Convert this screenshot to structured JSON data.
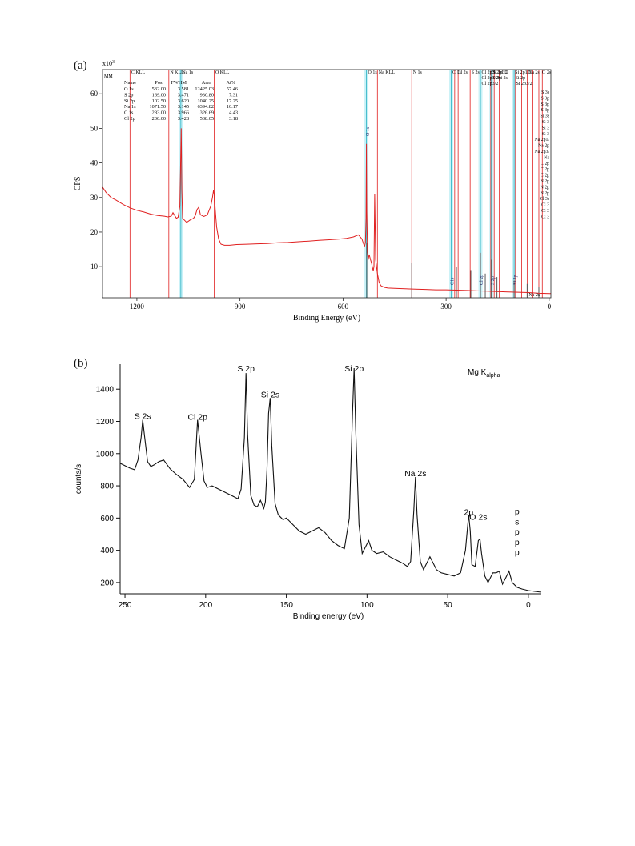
{
  "panel_a": {
    "label": "(a)",
    "ylabel": "CPS",
    "xlabel": "Binding Energy (eV)",
    "exponent_label": "x10",
    "exponent_sup": "3",
    "corner_tag": "MM",
    "table": {
      "headers": [
        "Name",
        "Pos.",
        "FWHM",
        "Area",
        "At%"
      ],
      "rows": [
        [
          "O 1s",
          "532.00",
          "3.581",
          "12425.03",
          "57.46"
        ],
        [
          "S 2p",
          "169.00",
          "3.471",
          "930.80",
          "7.31"
        ],
        [
          "Si 2p",
          "102.50",
          "3.620",
          "1040.25",
          "17.25"
        ],
        [
          "Na 1s",
          "1071.50",
          "3.145",
          "6394.82",
          "10.17"
        ],
        [
          "C 1s",
          "283.00",
          "3.966",
          "326.69",
          "4.43"
        ],
        [
          "Cl 2p",
          "200.00",
          "3.428",
          "538.05",
          "3.18"
        ]
      ]
    },
    "top_labels": [
      {
        "text": "C KLL",
        "x": 1220
      },
      {
        "text": "Na 1s",
        "x": 1072
      },
      {
        "text": "N KLL",
        "x": 1107
      },
      {
        "text": "O KLL",
        "x": 975
      },
      {
        "text": "O 1s",
        "x": 531
      },
      {
        "text": "Na KLL",
        "x": 500
      },
      {
        "text": "N 1s",
        "x": 400
      },
      {
        "text": "C 1s",
        "x": 285
      },
      {
        "text": "Cl 2s",
        "x": 270
      },
      {
        "text": "S 2s",
        "x": 230
      },
      {
        "text": "S 2p1/2",
        "x": 168
      },
      {
        "text": "Si 2p1/2",
        "x": 103
      },
      {
        "text": "Cl 2p3",
        "x": 200
      },
      {
        "text": "S 2p",
        "x": 168
      },
      {
        "text": "S 2p3/2",
        "x": 165
      },
      {
        "text": "Si 2p",
        "x": 102
      },
      {
        "text": "Na 2s",
        "x": 64
      },
      {
        "text": "Si 2p3/2",
        "x": 100
      },
      {
        "text": "Si 2s",
        "x": 152
      },
      {
        "text": "Cl 2p1/2",
        "x": 200
      },
      {
        "text": "Cl 2p3/2",
        "x": 200
      },
      {
        "text": "O 2s",
        "x": 24
      }
    ],
    "right_labels": [
      "S 3s",
      "S 3p",
      "S 3p",
      "S 3p",
      "Si 3s",
      "Si 3",
      "Si 3",
      "Si 3",
      "Na 2p1/",
      "Na 2p",
      "Na 2p3/",
      "Na",
      "C 2p",
      "C 2p",
      "C 2p",
      "N 2p",
      "N 2p",
      "N 2p",
      "Cl 3s",
      "Cl 3",
      "Cl 3",
      "Cl 3"
    ],
    "peak_tags": [
      {
        "text": "O 1s",
        "x": 531
      },
      {
        "text": "C1s",
        "x": 285
      },
      {
        "text": "Cl 2p",
        "x": 200
      },
      {
        "text": "S 2p",
        "x": 168
      },
      {
        "text": "Si 2p",
        "x": 102
      }
    ],
    "bottom_tag": "Na 2s"
  },
  "panel_b": {
    "label": "(b)",
    "ylabel": "counts/s",
    "xlabel": "Binding energy (eV)",
    "source": "Mg K",
    "source_sub": "alpha",
    "peak_labels": [
      {
        "text": "S 2s",
        "x": 239,
        "y": 1215
      },
      {
        "text": "Cl 2p",
        "x": 205,
        "y": 1210
      },
      {
        "text": "S 2p",
        "x": 175,
        "y": 1510
      },
      {
        "text": "Si 2s",
        "x": 160,
        "y": 1350
      },
      {
        "text": "Si 2p",
        "x": 108,
        "y": 1510
      },
      {
        "text": "Na 2s",
        "x": 70,
        "y": 860
      },
      {
        "text": "2p",
        "x": 37,
        "y": 620
      },
      {
        "text": "O 2s",
        "x": 31,
        "y": 590
      },
      {
        "text": "p",
        "x": 7,
        "y": 625
      },
      {
        "text": "s",
        "x": 7,
        "y": 560
      },
      {
        "text": "p",
        "x": 7,
        "y": 497
      },
      {
        "text": "p",
        "x": 7,
        "y": 433
      },
      {
        "text": "p",
        "x": 7,
        "y": 370
      }
    ]
  },
  "chart_data": [
    {
      "type": "line",
      "xlabel": "Binding Energy (eV)",
      "ylabel": "CPS",
      "xlim": [
        1300,
        -5
      ],
      "ylim": [
        1,
        67
      ],
      "x_reversed": true,
      "y_multiplier": "x10^3",
      "xticks": [
        1200,
        900,
        600,
        300,
        0
      ],
      "yticks": [
        10,
        20,
        30,
        40,
        50,
        60
      ],
      "series": [
        {
          "color": "#e02020",
          "x": [
            1300,
            1290,
            1275,
            1260,
            1240,
            1220,
            1200,
            1180,
            1160,
            1140,
            1120,
            1110,
            1100,
            1095,
            1090,
            1085,
            1080,
            1075,
            1073,
            1071,
            1069,
            1067,
            1062,
            1055,
            1045,
            1035,
            1030,
            1025,
            1020,
            1015,
            1005,
            995,
            985,
            980,
            977,
            975,
            972,
            968,
            962,
            955,
            945,
            930,
            910,
            880,
            850,
            820,
            790,
            760,
            730,
            700,
            670,
            640,
            610,
            590,
            570,
            555,
            545,
            540,
            537,
            535,
            533,
            532,
            531,
            529,
            527,
            524,
            520,
            517,
            514,
            512,
            510,
            508,
            505,
            500,
            495,
            490,
            480,
            470,
            450,
            420,
            390,
            360,
            330,
            300,
            270,
            240,
            210,
            180,
            150,
            120,
            90,
            60,
            30,
            0,
            -5
          ],
          "y": [
            33.0,
            31.5,
            30.0,
            29.2,
            28.0,
            27.0,
            26.3,
            25.8,
            25.2,
            24.8,
            24.6,
            24.4,
            24.6,
            25.6,
            24.8,
            24.0,
            24.3,
            27.5,
            38.0,
            50.0,
            32.0,
            24.0,
            23.5,
            22.8,
            23.5,
            24.0,
            24.8,
            26.5,
            27.2,
            25.0,
            24.5,
            25.0,
            27.5,
            30.0,
            32.0,
            31.0,
            26.5,
            21.5,
            18.0,
            16.5,
            16.2,
            16.2,
            16.4,
            16.5,
            16.6,
            16.7,
            16.9,
            17.0,
            17.2,
            17.4,
            17.6,
            17.8,
            18.0,
            18.2,
            18.6,
            19.2,
            18.0,
            16.5,
            16.0,
            17.0,
            24.0,
            45.5,
            26.0,
            14.5,
            12.0,
            13.5,
            12.0,
            11.0,
            9.5,
            8.8,
            10.0,
            31.0,
            12.0,
            8.0,
            5.5,
            4.5,
            4.0,
            3.8,
            3.7,
            3.6,
            3.5,
            3.4,
            3.3,
            3.3,
            3.2,
            3.1,
            3.0,
            2.9,
            2.8,
            2.7,
            2.6,
            2.5,
            2.3,
            2.2,
            2.2
          ]
        }
      ],
      "peak_bars": [
        {
          "x": 531,
          "y": 17
        },
        {
          "x": 400,
          "y": 11
        },
        {
          "x": 270,
          "y": 10
        },
        {
          "x": 228,
          "y": 9
        },
        {
          "x": 200,
          "y": 14
        },
        {
          "x": 186,
          "y": 8
        },
        {
          "x": 168,
          "y": 12
        },
        {
          "x": 152,
          "y": 7
        },
        {
          "x": 102,
          "y": 6
        },
        {
          "x": 64,
          "y": 5
        },
        {
          "x": 30,
          "y": 4
        }
      ],
      "marker_lines_red": [
        1220,
        1107,
        975,
        500,
        400,
        275,
        265,
        230,
        170,
        160,
        145,
        108,
        98,
        80,
        64,
        50,
        30,
        24,
        20
      ],
      "marker_lines_cyan": [
        1072,
        532,
        285,
        200,
        168,
        102
      ]
    },
    {
      "type": "line",
      "xlabel": "Binding energy (eV)",
      "ylabel": "counts/s",
      "xlim": [
        253,
        -8
      ],
      "ylim": [
        130,
        1555
      ],
      "x_reversed": true,
      "xticks": [
        250,
        200,
        150,
        100,
        50,
        0
      ],
      "yticks": [
        200,
        400,
        600,
        800,
        1000,
        1200,
        1400
      ],
      "series": [
        {
          "color": "#111111",
          "x": [
            253,
            250,
            247,
            244,
            242,
            240,
            239,
            238,
            236,
            234,
            232,
            229,
            226,
            222,
            218,
            214,
            210,
            207,
            205,
            203,
            201,
            199,
            196,
            192,
            188,
            184,
            180,
            178,
            176,
            175,
            174,
            172,
            170,
            168,
            166,
            164,
            163,
            162,
            161,
            160,
            159,
            157,
            155,
            152,
            150,
            146,
            142,
            138,
            134,
            130,
            126,
            122,
            118,
            114,
            111,
            109,
            108,
            107,
            105,
            103,
            101,
            99,
            97,
            94,
            90,
            86,
            82,
            78,
            75,
            73,
            71,
            70,
            69,
            67,
            65,
            63,
            61,
            59,
            57,
            54,
            50,
            46,
            42,
            39,
            37,
            36,
            35,
            33,
            31,
            30,
            29,
            27,
            25,
            22,
            20,
            18,
            16,
            14,
            12,
            10,
            7,
            4,
            0,
            -4,
            -8
          ],
          "y": [
            940,
            925,
            910,
            900,
            960,
            1100,
            1210,
            1120,
            950,
            920,
            930,
            950,
            960,
            905,
            870,
            840,
            790,
            840,
            1210,
            1010,
            830,
            790,
            800,
            780,
            760,
            740,
            720,
            780,
            1100,
            1500,
            1120,
            740,
            680,
            670,
            710,
            660,
            700,
            900,
            1250,
            1345,
            1050,
            690,
            620,
            590,
            600,
            560,
            520,
            500,
            520,
            540,
            510,
            460,
            430,
            410,
            600,
            1250,
            1530,
            1150,
            560,
            380,
            420,
            460,
            400,
            380,
            390,
            360,
            340,
            320,
            300,
            330,
            650,
            855,
            620,
            330,
            280,
            320,
            360,
            320,
            280,
            260,
            250,
            240,
            260,
            400,
            620,
            520,
            310,
            300,
            460,
            470,
            380,
            240,
            200,
            260,
            260,
            270,
            190,
            230,
            270,
            200,
            170,
            160,
            150,
            145,
            140
          ]
        }
      ]
    }
  ]
}
